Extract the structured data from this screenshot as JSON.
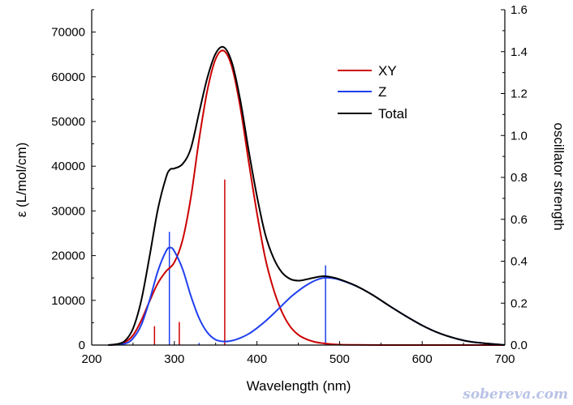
{
  "chart_data": {
    "type": "line",
    "xlabel": "Wavelength (nm)",
    "ylabel": "ε (L/mol/cm)",
    "y2label": "oscillator strength",
    "xlim": [
      200,
      700
    ],
    "ylim": [
      0,
      75000
    ],
    "y2lim": [
      0,
      1.6
    ],
    "xticks": [
      200,
      300,
      400,
      500,
      600,
      700
    ],
    "yticks": [
      0,
      10000,
      20000,
      30000,
      40000,
      50000,
      60000,
      70000
    ],
    "y2ticks": [
      "0.0",
      "0.2",
      "0.4",
      "0.6",
      "0.8",
      "1.0",
      "1.2",
      "1.4",
      "1.6"
    ],
    "grid": false,
    "legend_position": "top-right",
    "colors": {
      "XY": "#cc0000",
      "Z": "#1f3ff0",
      "Total": "#000000"
    },
    "series": [
      {
        "name": "XY",
        "x": [
          220,
          230,
          240,
          250,
          260,
          270,
          280,
          290,
          300,
          310,
          320,
          330,
          340,
          350,
          360,
          370,
          380,
          390,
          400,
          410,
          420,
          430,
          440,
          450,
          460,
          470,
          480,
          490,
          500,
          520,
          550,
          600,
          700
        ],
        "values": [
          0,
          100,
          600,
          2200,
          5500,
          9800,
          13800,
          16500,
          18500,
          23500,
          33000,
          46000,
          57000,
          64000,
          65800,
          62000,
          53000,
          41000,
          29500,
          19500,
          12500,
          7500,
          4200,
          2300,
          1300,
          700,
          400,
          200,
          100,
          40,
          10,
          0,
          0
        ]
      },
      {
        "name": "Z",
        "x": [
          220,
          240,
          250,
          260,
          270,
          280,
          290,
          295,
          300,
          310,
          320,
          330,
          340,
          350,
          360,
          370,
          380,
          390,
          400,
          410,
          420,
          430,
          440,
          450,
          460,
          470,
          480,
          490,
          500,
          520,
          540,
          560,
          580,
          600,
          620,
          640,
          660,
          700
        ],
        "values": [
          0,
          300,
          1500,
          4500,
          10000,
          16500,
          21000,
          21800,
          21000,
          17000,
          11000,
          6000,
          2800,
          1200,
          800,
          1000,
          1600,
          2500,
          3800,
          5300,
          7000,
          8800,
          10600,
          12100,
          13400,
          14400,
          15000,
          15000,
          14600,
          13200,
          11200,
          8800,
          6500,
          4400,
          2700,
          1500,
          700,
          0
        ]
      },
      {
        "name": "Total",
        "x": [
          220,
          230,
          240,
          250,
          260,
          270,
          280,
          290,
          295,
          300,
          310,
          320,
          330,
          340,
          350,
          360,
          370,
          380,
          390,
          400,
          410,
          420,
          430,
          440,
          450,
          460,
          470,
          480,
          490,
          500,
          520,
          540,
          560,
          580,
          600,
          620,
          640,
          660,
          700
        ],
        "values": [
          0,
          200,
          900,
          3700,
          10000,
          19800,
          30300,
          37500,
          39300,
          39500,
          40500,
          44000,
          52000,
          59800,
          65200,
          66600,
          63000,
          54600,
          43500,
          33300,
          24800,
          19500,
          16300,
          14800,
          14400,
          14700,
          15100,
          15400,
          15200,
          14700,
          13240,
          11210,
          8800,
          6500,
          4400,
          2700,
          1500,
          700,
          0
        ]
      }
    ],
    "sticks": [
      {
        "series": "XY",
        "x": 276,
        "f": 0.09
      },
      {
        "series": "XY",
        "x": 306,
        "f": 0.11
      },
      {
        "series": "XY",
        "x": 361,
        "f": 0.79
      },
      {
        "series": "Z",
        "x": 294,
        "f": 0.54
      },
      {
        "series": "Z",
        "x": 330,
        "f": 0.01
      },
      {
        "series": "Z",
        "x": 483,
        "f": 0.38
      }
    ]
  },
  "watermark": "sobereva.com"
}
